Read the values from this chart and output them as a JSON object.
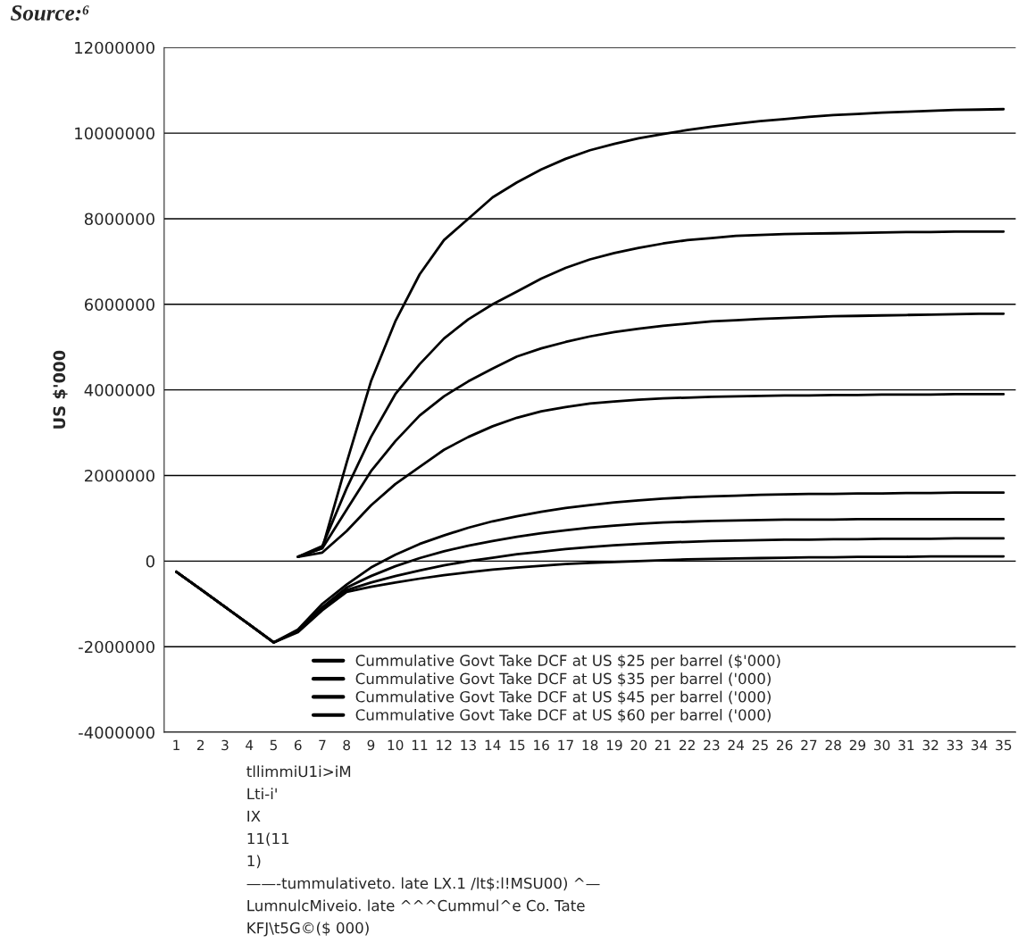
{
  "chart_data": {
    "type": "line",
    "title": "Source:⁶",
    "ylabel": "US $'000",
    "categories": [
      "1",
      "2",
      "3",
      "4",
      "5",
      "6",
      "7",
      "8",
      "9",
      "10",
      "11",
      "12",
      "13",
      "14",
      "15",
      "16",
      "17",
      "18",
      "19",
      "20",
      "21",
      "22",
      "23",
      "24",
      "25",
      "26",
      "27",
      "28",
      "29",
      "30",
      "31",
      "32",
      "33",
      "34",
      "35"
    ],
    "series": [
      {
        "name": "Cummulative Govt Take DCF at US $25 per barrel ($'000)",
        "color": "#000000",
        "values": [
          null,
          null,
          null,
          null,
          null,
          100000,
          200000,
          700000,
          1300000,
          1800000,
          2200000,
          2600000,
          2900000,
          3150000,
          3350000,
          3500000,
          3600000,
          3680000,
          3730000,
          3770000,
          3800000,
          3820000,
          3840000,
          3850000,
          3860000,
          3870000,
          3870000,
          3880000,
          3880000,
          3890000,
          3890000,
          3890000,
          3900000,
          3900000,
          3900000
        ]
      },
      {
        "name": "Cummulative Govt Take DCF at US $35 per barrel ('000)",
        "color": "#000000",
        "values": [
          null,
          null,
          null,
          null,
          null,
          100000,
          300000,
          1200000,
          2100000,
          2800000,
          3400000,
          3850000,
          4200000,
          4500000,
          4780000,
          4970000,
          5120000,
          5250000,
          5350000,
          5430000,
          5500000,
          5550000,
          5600000,
          5630000,
          5660000,
          5680000,
          5700000,
          5720000,
          5730000,
          5740000,
          5750000,
          5760000,
          5770000,
          5780000,
          5780000
        ]
      },
      {
        "name": "Cummulative Govt Take DCF at US $45 per barrel ('000)",
        "color": "#000000",
        "values": [
          null,
          null,
          null,
          null,
          null,
          100000,
          350000,
          1700000,
          2900000,
          3900000,
          4600000,
          5200000,
          5650000,
          6000000,
          6300000,
          6600000,
          6850000,
          7050000,
          7200000,
          7320000,
          7420000,
          7500000,
          7550000,
          7600000,
          7620000,
          7640000,
          7650000,
          7660000,
          7670000,
          7680000,
          7690000,
          7690000,
          7700000,
          7700000,
          7700000
        ]
      },
      {
        "name": "Cummulative Govt Take DCF at US $60 per barrel ('000)",
        "color": "#000000",
        "values": [
          null,
          null,
          null,
          null,
          null,
          100000,
          300000,
          2300000,
          4200000,
          5600000,
          6700000,
          7500000,
          8000000,
          8500000,
          8850000,
          9150000,
          9400000,
          9600000,
          9750000,
          9880000,
          9980000,
          10070000,
          10150000,
          10220000,
          10280000,
          10330000,
          10380000,
          10420000,
          10450000,
          10480000,
          10500000,
          10520000,
          10540000,
          10550000,
          10560000
        ]
      },
      {
        "color": "#000000",
        "values": [
          -250000,
          -660000,
          -1070000,
          -1480000,
          -1900000,
          -1600000,
          -1000000,
          -550000,
          -150000,
          150000,
          400000,
          600000,
          780000,
          930000,
          1050000,
          1150000,
          1240000,
          1310000,
          1370000,
          1420000,
          1460000,
          1490000,
          1510000,
          1530000,
          1550000,
          1560000,
          1570000,
          1570000,
          1580000,
          1580000,
          1590000,
          1590000,
          1600000,
          1600000,
          1600000
        ]
      },
      {
        "color": "#000000",
        "values": [
          -250000,
          -660000,
          -1070000,
          -1480000,
          -1900000,
          -1620000,
          -1080000,
          -620000,
          -350000,
          -120000,
          70000,
          230000,
          360000,
          470000,
          570000,
          650000,
          720000,
          780000,
          830000,
          870000,
          900000,
          920000,
          940000,
          950000,
          960000,
          970000,
          970000,
          970000,
          980000,
          980000,
          980000,
          980000,
          980000,
          980000,
          980000
        ]
      },
      {
        "color": "#000000",
        "values": [
          -250000,
          -660000,
          -1070000,
          -1480000,
          -1900000,
          -1640000,
          -1120000,
          -680000,
          -500000,
          -350000,
          -220000,
          -100000,
          0,
          80000,
          160000,
          220000,
          280000,
          330000,
          370000,
          400000,
          430000,
          450000,
          470000,
          480000,
          490000,
          500000,
          500000,
          510000,
          510000,
          520000,
          520000,
          520000,
          530000,
          530000,
          530000
        ]
      },
      {
        "color": "#000000",
        "values": [
          -250000,
          -660000,
          -1070000,
          -1480000,
          -1900000,
          -1660000,
          -1150000,
          -720000,
          -600000,
          -500000,
          -410000,
          -330000,
          -260000,
          -200000,
          -150000,
          -110000,
          -70000,
          -40000,
          -20000,
          0,
          20000,
          40000,
          50000,
          60000,
          70000,
          80000,
          90000,
          90000,
          100000,
          100000,
          100000,
          110000,
          110000,
          110000,
          110000
        ]
      }
    ],
    "ylim": [
      -4000000,
      12000000
    ],
    "yticks": [
      -4000000,
      -2000000,
      0,
      2000000,
      4000000,
      6000000,
      8000000,
      10000000,
      12000000
    ],
    "grid": "y",
    "legend": "bottom",
    "marker": "none",
    "line_style": "solid",
    "annotations": [
      "tllimmiU1i>iM",
      "Lti-i'",
      "IX",
      "11(11",
      "1)",
      "——-tummulativeto. late LX.1 /lt$:l!MSU00) ^—",
      "LumnulcMiveio. late ^^^Cummul^e Co. Tate",
      "KFJ\\t5G©($ 000)"
    ]
  }
}
